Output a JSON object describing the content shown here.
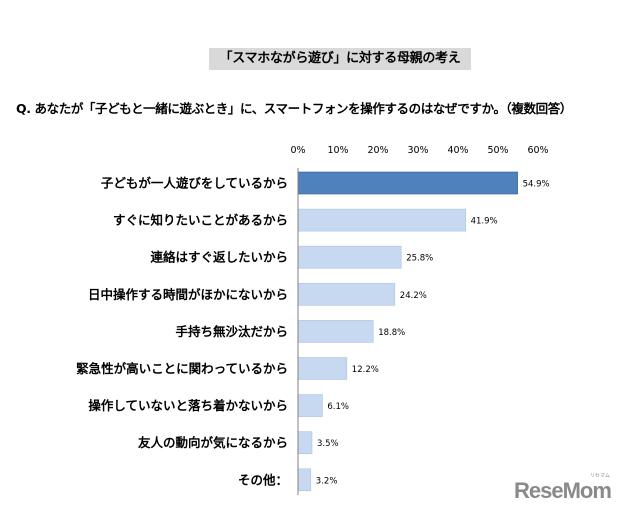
{
  "title": "「スマホながら遊び」に対する母親の考え",
  "question": "Q. あなたが「子どもと一緒に遊ぶとき」に、スマートフォンを操作するのはなぜですか。（複数回答）",
  "logo": {
    "text": "ReseMom",
    "sub": "リセマム"
  },
  "colors": {
    "highlight": "#4f81bd",
    "bar": "#c6d9f1",
    "bar_border": "#a9c3e0",
    "highlight_border": "#2e5a8c"
  },
  "chart_data": {
    "type": "bar",
    "orientation": "horizontal",
    "xlim": [
      0,
      60
    ],
    "ticks": [
      "0%",
      "10%",
      "20%",
      "30%",
      "40%",
      "50%",
      "60%"
    ],
    "tick_values": [
      0,
      10,
      20,
      30,
      40,
      50,
      60
    ],
    "categories": [
      "子どもが一人遊びをしているから",
      "すぐに知りたいことがあるから",
      "連絡はすぐ返したいから",
      "日中操作する時間がほかにないから",
      "手持ち無沙汰だから",
      "緊急性が高いことに関わっているから",
      "操作していないと落ち着かないから",
      "友人の動向が気になるから",
      "その他："
    ],
    "values": [
      54.9,
      41.9,
      25.8,
      24.2,
      18.8,
      12.2,
      6.1,
      3.5,
      3.2
    ],
    "labels": [
      "54.9%",
      "41.9%",
      "25.8%",
      "24.2%",
      "18.8%",
      "12.2%",
      "6.1%",
      "3.5%",
      "3.2%"
    ],
    "highlight_index": 0,
    "grid": false
  }
}
